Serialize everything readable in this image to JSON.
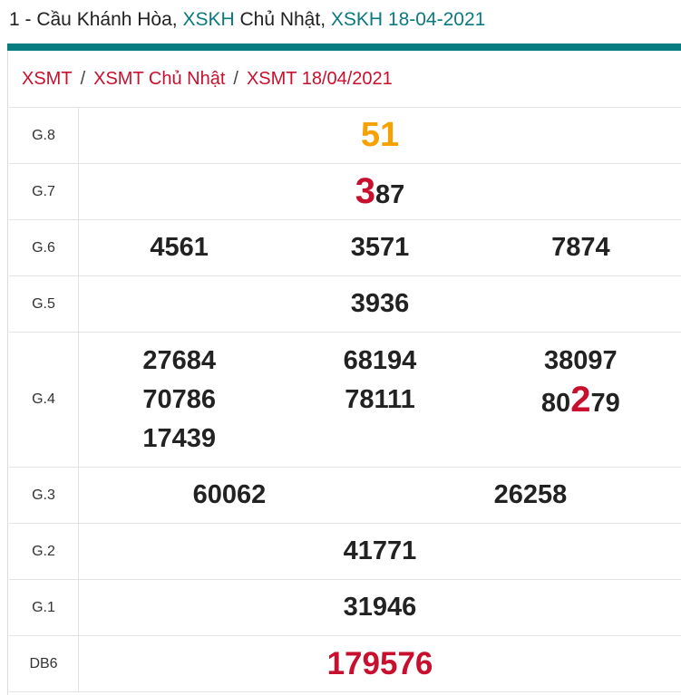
{
  "header": {
    "prefix": "1 - Cầu Khánh Hòa, ",
    "link1": "XSKH",
    "mid": " Chủ Nhật, ",
    "link2": "XSKH 18-04-2021"
  },
  "breadcrumb": [
    "XSMT",
    "XSMT Chủ Nhật",
    "XSMT 18/04/2021"
  ],
  "breadcrumb_sep": "/",
  "colors": {
    "accent": "#077d82",
    "red": "#c8102e",
    "orange": "#f5a100"
  },
  "prizes": {
    "g8": {
      "label": "G.8",
      "value": "51"
    },
    "g7": {
      "label": "G.7",
      "highlight": "3",
      "rest": "87"
    },
    "g6": {
      "label": "G.6",
      "values": [
        "4561",
        "3571",
        "7874"
      ]
    },
    "g5": {
      "label": "G.5",
      "value": "3936"
    },
    "g4": {
      "label": "G.4",
      "values": [
        "27684",
        "70786",
        "17439",
        "68194",
        "78111",
        "38097"
      ],
      "last_prefix": "80",
      "last_highlight": "2",
      "last_suffix": "79"
    },
    "g3": {
      "label": "G.3",
      "values": [
        "60062",
        "26258"
      ]
    },
    "g2": {
      "label": "G.2",
      "value": "41771"
    },
    "g1": {
      "label": "G.1",
      "value": "31946"
    },
    "db": {
      "label": "DB6",
      "value": "179576"
    }
  }
}
